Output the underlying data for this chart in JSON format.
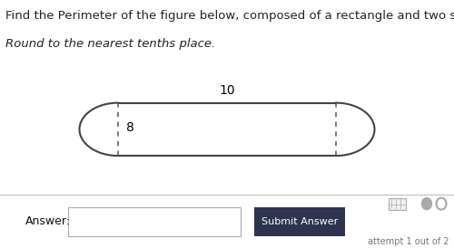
{
  "title_line1": "Find the Perimeter of the figure below, composed of a rectangle and two semicircles.",
  "title_line2": "Round to the nearest tenths place.",
  "title_fontsize": 9.5,
  "subtitle_fontsize": 9.5,
  "title_bg_color": "#e0d8ee",
  "shape_color": "#444444",
  "dashed_color": "#555555",
  "answer_label": "Answer:",
  "submit_label": "Submit Answer",
  "attempt_label": "attempt 1 out of 2",
  "submit_bg": "#2e3450",
  "submit_fg": "#ffffff",
  "label_10": "10",
  "label_8": "8",
  "bottom_panel_color": "#e8e8e8",
  "white": "#ffffff",
  "icon_color": "#888888"
}
